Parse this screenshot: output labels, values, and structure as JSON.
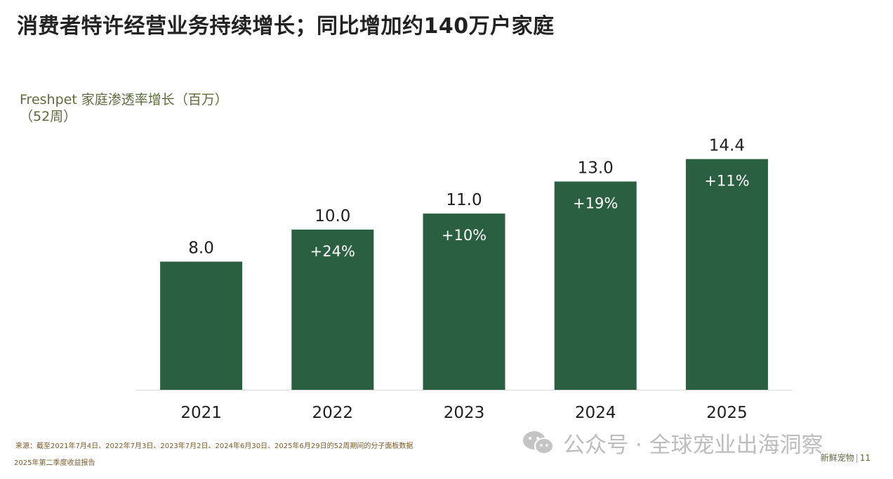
{
  "header": {
    "title": "消费者特许经营业务持续增长；同比增加约140万户家庭"
  },
  "chart_data": {
    "type": "bar",
    "title_lines": [
      "Freshpet 家庭渗透率增长（百万）",
      "（52周）"
    ],
    "categories": [
      "2021",
      "2022",
      "2023",
      "2024",
      "2025"
    ],
    "values": [
      8.0,
      10.0,
      11.0,
      13.0,
      14.4
    ],
    "value_labels": [
      "8.0",
      "10.0",
      "11.0",
      "13.0",
      "14.4"
    ],
    "growth_labels": [
      "",
      "+24%",
      "+10%",
      "+19%",
      "+11%"
    ],
    "ylim": [
      0,
      16
    ],
    "grid": false,
    "legend": "none",
    "bar_color": "#2a6041"
  },
  "footer": {
    "source": "来源：截至2021年7月4日、2022年7月3日、2023年7月2日、2024年6月30日、2025年6月29日的52周期间的分子面板数据",
    "report": "2025年第二季度收益报告",
    "brand": "新鲜宠物",
    "page": "11"
  },
  "watermark": {
    "text": "公众号 · 全球宠业出海洞察",
    "icon": "wechat-icon"
  }
}
